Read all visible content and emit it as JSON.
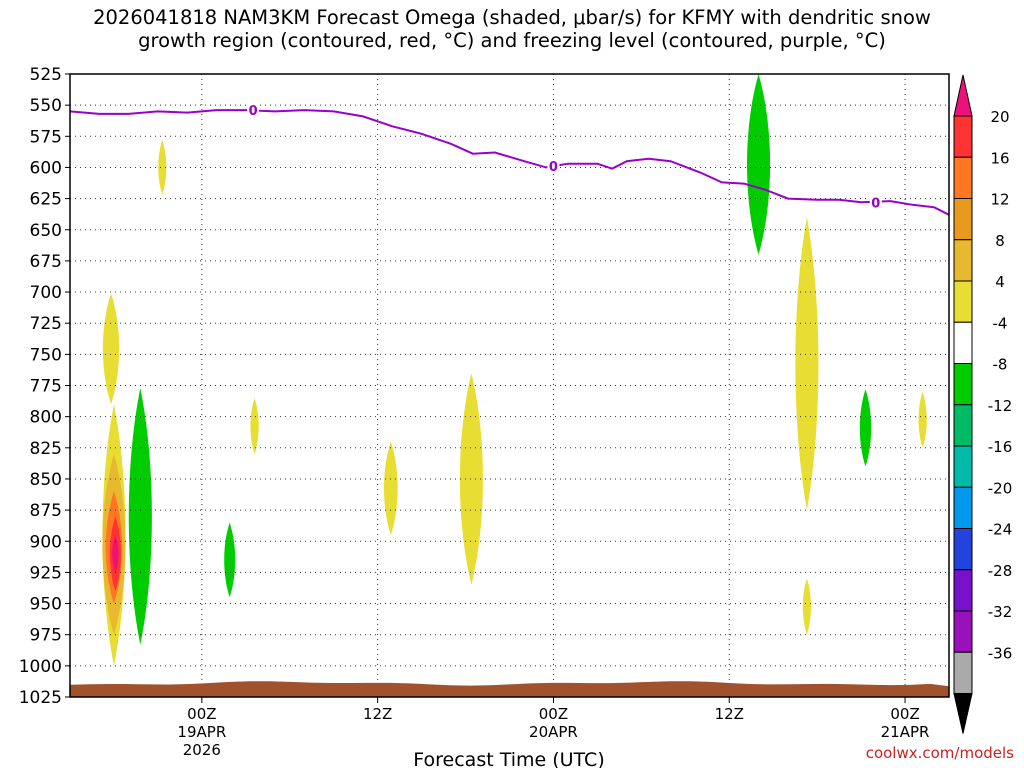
{
  "title": {
    "line1": "2026041818 NAM3KM Forecast Omega (shaded, μbar/s) for KFMY with dendritic snow",
    "line2": "growth region (contoured, red, °C) and freezing level (contoured, purple, °C)"
  },
  "footer": {
    "credit": "coolwx.com/models"
  },
  "chart_data": {
    "type": "heatmap",
    "title": "2026041818 NAM3KM Forecast Omega (shaded, μbar/s) for KFMY with dendritic snow growth region (contoured, red, °C) and freezing level (contoured, purple, °C)",
    "xlabel": "Forecast Time (UTC)",
    "ylabel": "",
    "x_range_hours": [
      -3,
      57
    ],
    "y_range_mb": [
      525,
      1025
    ],
    "y_log": false,
    "y_ticks": [
      525,
      550,
      575,
      600,
      625,
      650,
      675,
      700,
      725,
      750,
      775,
      800,
      825,
      850,
      875,
      900,
      925,
      950,
      975,
      1000,
      1025
    ],
    "x_ticks": [
      {
        "hour": 6,
        "label": "00Z",
        "sub": [
          "19APR",
          "2026"
        ]
      },
      {
        "hour": 18,
        "label": "12Z",
        "sub": []
      },
      {
        "hour": 30,
        "label": "00Z",
        "sub": [
          "20APR"
        ]
      },
      {
        "hour": 42,
        "label": "12Z",
        "sub": []
      },
      {
        "hour": 54,
        "label": "00Z",
        "sub": [
          "21APR"
        ]
      }
    ],
    "grid": true,
    "colorbar": {
      "labels": [
        "20",
        "16",
        "12",
        "8",
        "4",
        "-4",
        "-8",
        "-12",
        "-16",
        "-20",
        "-24",
        "-28",
        "-32",
        "-36"
      ],
      "colors": [
        "#ee1177",
        "#ff3333",
        "#ff7722",
        "#e89a1e",
        "#e8b830",
        "#e8dd33",
        "#ffffff",
        "#00cc00",
        "#00bb66",
        "#00bbaa",
        "#0099ee",
        "#2244dd",
        "#7711cc",
        "#9911bb",
        "#aaaaaa",
        "#000000"
      ]
    },
    "freezing_level": {
      "label": "0",
      "color": "#9900cc",
      "points": [
        [
          -3,
          555
        ],
        [
          -1,
          557
        ],
        [
          1,
          557
        ],
        [
          3,
          555
        ],
        [
          5,
          556
        ],
        [
          7,
          554
        ],
        [
          9,
          554
        ],
        [
          11,
          555
        ],
        [
          13,
          554
        ],
        [
          15,
          555
        ],
        [
          17,
          559
        ],
        [
          19,
          567
        ],
        [
          21,
          573
        ],
        [
          23,
          581
        ],
        [
          24.5,
          589
        ],
        [
          26,
          588
        ],
        [
          28,
          595
        ],
        [
          29.5,
          600
        ],
        [
          31,
          597
        ],
        [
          33,
          597
        ],
        [
          34,
          601
        ],
        [
          35,
          595
        ],
        [
          36.5,
          593
        ],
        [
          38,
          595
        ],
        [
          40,
          604
        ],
        [
          41.5,
          612
        ],
        [
          43,
          613
        ],
        [
          44.5,
          618
        ],
        [
          46,
          625
        ],
        [
          48,
          626
        ],
        [
          49.5,
          626
        ],
        [
          51,
          628
        ],
        [
          53,
          627
        ],
        [
          54.5,
          630
        ],
        [
          56,
          632
        ],
        [
          57,
          638
        ]
      ],
      "label_points": [
        [
          9.5,
          554
        ],
        [
          30,
          599
        ],
        [
          52,
          628
        ]
      ]
    },
    "omega_features": [
      {
        "value_bin": "4-8",
        "color": "#e8dd33",
        "center_hour": -0.2,
        "pressure_range": [
          701,
          790
        ]
      },
      {
        "value_bin": "4-8",
        "color": "#e8dd33",
        "center_hour": 0,
        "pressure_range": [
          790,
          1000
        ]
      },
      {
        "value_bin": "8-12",
        "color": "#e8b830",
        "center_hour": 0,
        "pressure_range": [
          830,
          975
        ]
      },
      {
        "value_bin": "12-16",
        "color": "#ff7722",
        "center_hour": 0,
        "pressure_range": [
          860,
          950
        ]
      },
      {
        "value_bin": "16-20",
        "color": "#ff3333",
        "center_hour": 0.1,
        "pressure_range": [
          880,
          940
        ]
      },
      {
        "value_bin": ">20",
        "color": "#ee1177",
        "center_hour": 0.1,
        "pressure_range": [
          895,
          925
        ]
      },
      {
        "value_bin": "4-8",
        "color": "#e8dd33",
        "center_hour": 3.3,
        "pressure_range": [
          578,
          622
        ]
      },
      {
        "value_bin": "-4 to -8",
        "color": "#00cc00",
        "center_hour": 1.8,
        "pressure_range": [
          777,
          983
        ]
      },
      {
        "value_bin": "-4 to -8",
        "color": "#00cc00",
        "center_hour": 7.9,
        "pressure_range": [
          885,
          945
        ]
      },
      {
        "value_bin": "4-8",
        "color": "#e8dd33",
        "center_hour": 9.6,
        "pressure_range": [
          785,
          830
        ]
      },
      {
        "value_bin": "4-8",
        "color": "#e8dd33",
        "center_hour": 18.9,
        "pressure_range": [
          820,
          895
        ]
      },
      {
        "value_bin": "4-8",
        "color": "#e8dd33",
        "center_hour": 24.4,
        "pressure_range": [
          765,
          935
        ]
      },
      {
        "value_bin": "-4 to -8",
        "color": "#00cc00",
        "center_hour": 44.0,
        "pressure_range": [
          525,
          670
        ]
      },
      {
        "value_bin": "4-8",
        "color": "#e8dd33",
        "center_hour": 47.3,
        "pressure_range": [
          640,
          875
        ]
      },
      {
        "value_bin": "4-8",
        "color": "#e8dd33",
        "center_hour": 47.3,
        "pressure_range": [
          930,
          975
        ]
      },
      {
        "value_bin": "-4 to -8",
        "color": "#00cc00",
        "center_hour": 51.3,
        "pressure_range": [
          778,
          840
        ]
      },
      {
        "value_bin": "4-8",
        "color": "#e8dd33",
        "center_hour": 55.2,
        "pressure_range": [
          780,
          825
        ]
      }
    ],
    "terrain": {
      "color": "#a0522d",
      "top_pressure_mb": 1014
    }
  }
}
